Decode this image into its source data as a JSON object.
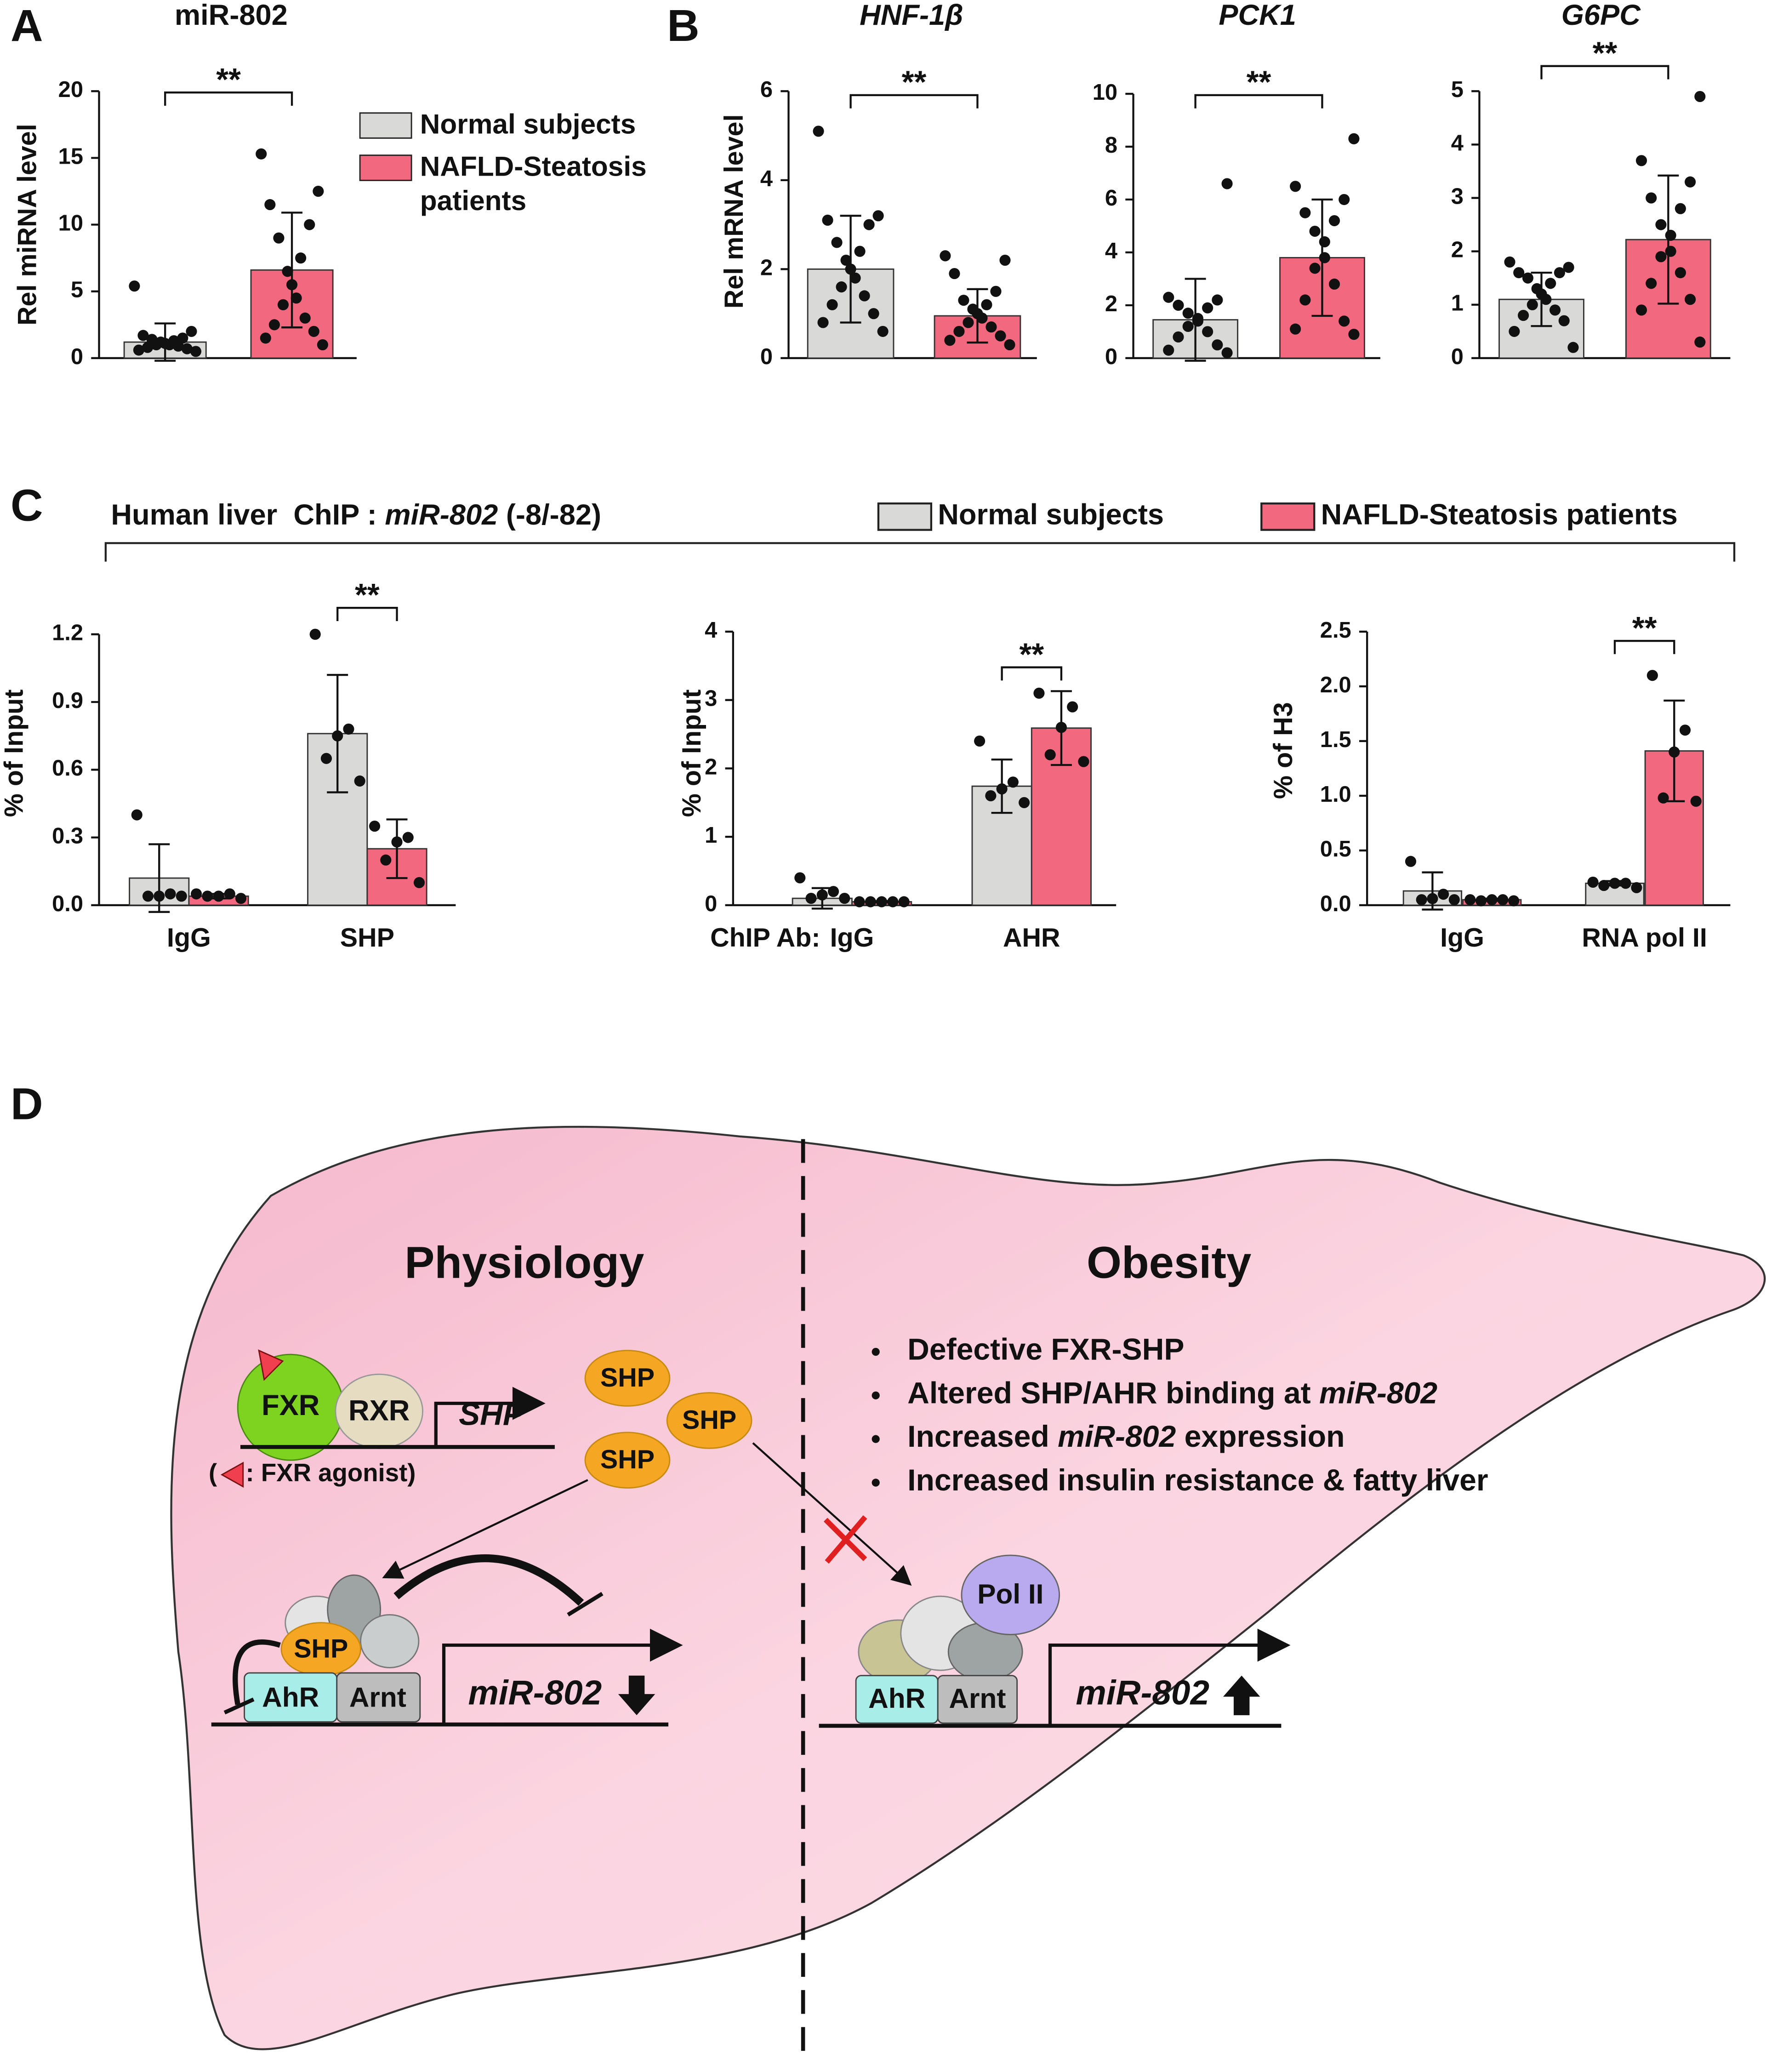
{
  "panel_labels": [
    "A",
    "B",
    "C",
    "D"
  ],
  "panel_c_title": [
    "Human liver  ChIP : ",
    "miR-802",
    " (-8/-82)"
  ],
  "chart_data": [
    {
      "type": "bar",
      "title": "miR-802",
      "y_label": "Rel miRNA level",
      "ylim": [
        0,
        20
      ],
      "yticks": [
        0,
        5,
        10,
        15,
        20
      ],
      "categories": [
        null
      ],
      "significance": [
        "**"
      ],
      "series": [
        {
          "name": "Normal subjects",
          "color": "#d9dad8",
          "values": [
            1.2
          ],
          "errors": [
            1.4
          ],
          "points": [
            [
              0.5,
              0.6,
              0.7,
              0.8,
              0.9,
              1.0,
              1.0,
              1.1,
              1.2,
              1.3,
              1.4,
              1.5,
              1.7,
              2.0,
              5.4
            ]
          ]
        },
        {
          "name": "NAFLD-Steatosis patients",
          "color": "#f2687e",
          "values": [
            6.6
          ],
          "errors": [
            4.3
          ],
          "points": [
            [
              1.0,
              1.5,
              2.0,
              2.5,
              3.0,
              4.0,
              4.5,
              5.5,
              6.5,
              7.5,
              9.0,
              10.0,
              11.5,
              12.5,
              15.3
            ]
          ]
        }
      ]
    },
    {
      "type": "bar",
      "title": "HNF-1β",
      "y_label": "Rel mRNA level",
      "ylim": [
        0,
        6
      ],
      "yticks": [
        0,
        2,
        4,
        6
      ],
      "categories": [
        null
      ],
      "significance": [
        "**"
      ],
      "series": [
        {
          "color": "#d9dad8",
          "values": [
            2.0
          ],
          "errors": [
            1.2
          ],
          "points": [
            [
              0.6,
              0.8,
              1.0,
              1.2,
              1.4,
              1.6,
              1.8,
              2.0,
              2.2,
              2.4,
              2.6,
              3.0,
              3.1,
              3.2,
              5.1
            ]
          ]
        },
        {
          "color": "#f2687e",
          "values": [
            0.95
          ],
          "errors": [
            0.6
          ],
          "points": [
            [
              0.3,
              0.4,
              0.5,
              0.6,
              0.7,
              0.8,
              0.9,
              1.0,
              1.1,
              1.2,
              1.3,
              1.5,
              1.9,
              2.2,
              2.3
            ]
          ]
        }
      ]
    },
    {
      "type": "bar",
      "title": "PCK1",
      "ylim": [
        0,
        10
      ],
      "yticks": [
        0,
        2,
        4,
        6,
        8,
        10
      ],
      "categories": [
        null
      ],
      "significance": [
        "**"
      ],
      "series": [
        {
          "color": "#d9dad8",
          "values": [
            1.45
          ],
          "errors": [
            1.55
          ],
          "points": [
            [
              0.2,
              0.3,
              0.5,
              0.8,
              1.0,
              1.2,
              1.4,
              1.5,
              1.7,
              1.9,
              2.0,
              2.2,
              2.3,
              6.6
            ]
          ]
        },
        {
          "color": "#f2687e",
          "values": [
            3.8
          ],
          "errors": [
            2.2
          ],
          "points": [
            [
              0.9,
              1.1,
              1.4,
              2.2,
              2.8,
              3.4,
              3.8,
              4.4,
              4.8,
              5.2,
              5.5,
              6.0,
              6.5,
              8.3
            ]
          ]
        }
      ]
    },
    {
      "type": "bar",
      "title": "G6PC",
      "ylim": [
        0,
        5
      ],
      "yticks": [
        0,
        1,
        2,
        3,
        4,
        5
      ],
      "categories": [
        null
      ],
      "significance": [
        "**"
      ],
      "series": [
        {
          "color": "#d9dad8",
          "values": [
            1.1
          ],
          "errors": [
            0.5
          ],
          "points": [
            [
              0.2,
              0.5,
              0.7,
              0.8,
              0.9,
              1.0,
              1.1,
              1.2,
              1.3,
              1.4,
              1.5,
              1.6,
              1.6,
              1.7,
              1.8
            ]
          ]
        },
        {
          "color": "#f2687e",
          "values": [
            2.22
          ],
          "errors": [
            1.2
          ],
          "points": [
            [
              0.3,
              0.9,
              1.1,
              1.4,
              1.6,
              1.9,
              2.0,
              2.3,
              2.5,
              2.8,
              3.0,
              3.3,
              3.7,
              4.9
            ]
          ]
        }
      ]
    },
    {
      "type": "bar",
      "y_label": "% of Input",
      "ylim": [
        0,
        1.2
      ],
      "yticks": [
        {
          "value": 0,
          "label": "0.0"
        },
        0.3,
        0.6,
        0.9,
        1.2
      ],
      "categories": [
        "IgG",
        "SHP"
      ],
      "significance": [
        null,
        "**"
      ],
      "series": [
        {
          "name": "Normal subjects",
          "color": "#d9dad8",
          "values": [
            0.12,
            0.76
          ],
          "errors": [
            0.15,
            0.26
          ],
          "points": [
            [
              0.04,
              0.04,
              0.04,
              0.05,
              0.4
            ],
            [
              0.55,
              0.65,
              0.75,
              0.78,
              1.2
            ]
          ]
        },
        {
          "name": "NAFLD-Steatosis patients",
          "color": "#f2687e",
          "values": [
            0.04,
            0.25
          ],
          "errors": [
            0.01,
            0.13
          ],
          "points": [
            [
              0.03,
              0.04,
              0.04,
              0.05,
              0.05
            ],
            [
              0.1,
              0.2,
              0.28,
              0.3,
              0.35
            ]
          ]
        }
      ]
    },
    {
      "type": "bar",
      "y_label": "% of Input",
      "x_prefix": "ChIP Ab:",
      "ylim": [
        0,
        4
      ],
      "yticks": [
        0,
        1,
        2,
        3,
        4
      ],
      "categories": [
        "IgG",
        "AHR"
      ],
      "significance": [
        null,
        "**"
      ],
      "series": [
        {
          "color": "#d9dad8",
          "values": [
            0.1,
            1.74
          ],
          "errors": [
            0.15,
            0.39
          ],
          "points": [
            [
              0.1,
              0.1,
              0.15,
              0.2,
              0.4
            ],
            [
              1.5,
              1.6,
              1.7,
              1.8,
              2.4
            ]
          ]
        },
        {
          "color": "#f2687e",
          "values": [
            0.05,
            2.59
          ],
          "errors": [
            0.01,
            0.54
          ],
          "points": [
            [
              0.05,
              0.05,
              0.05,
              0.05,
              0.05
            ],
            [
              2.1,
              2.2,
              2.6,
              2.9,
              3.1
            ]
          ]
        }
      ]
    },
    {
      "type": "bar",
      "y_label": "% of H3",
      "ylim": [
        0,
        2.5
      ],
      "yticks": [
        {
          "value": 0,
          "label": "0.0"
        },
        0.5,
        {
          "value": 1,
          "label": "1.0"
        },
        1.5,
        {
          "value": 2,
          "label": "2.0"
        },
        2.5
      ],
      "categories": [
        "IgG",
        "RNA pol II"
      ],
      "significance": [
        null,
        "**"
      ],
      "series": [
        {
          "color": "#d9dad8",
          "values": [
            0.13,
            0.2
          ],
          "errors": [
            0.17,
            0.02
          ],
          "points": [
            [
              0.05,
              0.05,
              0.06,
              0.1,
              0.4
            ],
            [
              0.16,
              0.18,
              0.2,
              0.2,
              0.21
            ]
          ]
        },
        {
          "color": "#f2687e",
          "values": [
            0.05,
            1.41
          ],
          "errors": [
            0.01,
            0.46
          ],
          "points": [
            [
              0.04,
              0.04,
              0.05,
              0.05,
              0.05
            ],
            [
              0.95,
              0.98,
              1.4,
              1.6,
              2.1
            ]
          ]
        }
      ]
    }
  ],
  "diagram": {
    "left_title": "Physiology",
    "right_title": "Obesity",
    "bullets": [
      [
        "Defective FXR-SHP"
      ],
      [
        "Altered SHP/AHR binding at ",
        "miR-802"
      ],
      [
        "Increased ",
        "miR-802",
        " expression"
      ],
      [
        "Increased insulin resistance & fatty liver"
      ]
    ],
    "nodes": [
      "FXR",
      "RXR",
      "SHP",
      "SHP",
      "SHP",
      "SHP",
      "(",
      ": FXR agonist)",
      "SHP",
      "AhR",
      "Arnt",
      "miR-802",
      "Pol II",
      "AhR",
      "Arnt",
      "miR-802"
    ]
  }
}
